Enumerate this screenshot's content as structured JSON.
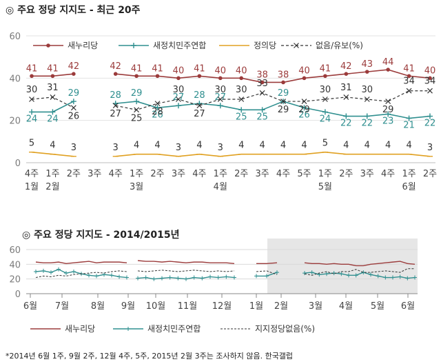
{
  "titles": {
    "top": "◎ 주요 정당 지지도 - 최근 20주",
    "bottom": "◎ 주요 정당 지지도 - 2014/2015년"
  },
  "footnote": "*2014년 6월 1주, 9월 2주, 12월 4주, 5주, 2015년 2월 3주는 조사하지 않음. 한국갤럽",
  "colors": {
    "saenuri": "#9b3b3b",
    "npad": "#2f8f8f",
    "justice": "#e0a020",
    "none": "#333333",
    "shade": "#e6e6e6"
  },
  "chart_data": [
    {
      "type": "line",
      "title": "주요 정당 지지도 - 최근 20주",
      "ylim": [
        0,
        60
      ],
      "yticks": [
        0,
        20,
        40,
        60
      ],
      "grid": true,
      "legend_position": "top",
      "x_week": [
        "4주",
        "1주",
        "2주",
        "3주",
        "4주",
        "1주",
        "2주",
        "3주",
        "4주",
        "1주",
        "2주",
        "3주",
        "4주",
        "5주",
        "1주",
        "2주",
        "3주",
        "4주",
        "1주",
        "2주"
      ],
      "x_month": [
        "1월",
        "2월",
        "",
        "",
        "",
        "3월",
        "",
        "",
        "",
        "4월",
        "",
        "",
        "",
        "",
        "5월",
        "",
        "",
        "",
        "6월",
        ""
      ],
      "series": [
        {
          "name": "새누리당",
          "color_key": "saenuri",
          "marker": "dot",
          "values": [
            41,
            41,
            42,
            null,
            42,
            41,
            41,
            40,
            41,
            40,
            40,
            38,
            38,
            40,
            41,
            42,
            43,
            44,
            41,
            40
          ]
        },
        {
          "name": "새정치민주연합",
          "color_key": "npad",
          "marker": "plus",
          "values": [
            24,
            24,
            29,
            null,
            28,
            29,
            26,
            27,
            28,
            27,
            25,
            25,
            29,
            26,
            24,
            22,
            22,
            23,
            21,
            22
          ]
        },
        {
          "name": "정의당",
          "color_key": "justice",
          "marker": "dash",
          "values": [
            5,
            4,
            3,
            null,
            3,
            4,
            4,
            3,
            4,
            3,
            4,
            4,
            4,
            4,
            5,
            4,
            4,
            4,
            4,
            3
          ]
        },
        {
          "name": "없음/유보(%)",
          "color_key": "none",
          "marker": "x",
          "dashed": true,
          "values": [
            30,
            31,
            26,
            null,
            27,
            25,
            28,
            30,
            27,
            30,
            30,
            33,
            29,
            29,
            30,
            31,
            30,
            29,
            34,
            34
          ]
        }
      ]
    },
    {
      "type": "line",
      "title": "주요 정당 지지도 - 2014/2015년",
      "ylim": [
        0,
        60
      ],
      "yticks": [
        0,
        20,
        40,
        60
      ],
      "grid": true,
      "legend_position": "bottom",
      "x_months": [
        "6월",
        "7월",
        "8월",
        "9월",
        "10월",
        "11월",
        "12월",
        "1월",
        "2월",
        "3월",
        "4월",
        "5월",
        "6월"
      ],
      "highlight_from_month": "1월",
      "series": [
        {
          "name": "새누리당",
          "color_key": "saenuri",
          "segments": [
            [
              43,
              42,
              42,
              43,
              41,
              42,
              43,
              44,
              42,
              43,
              43,
              43,
              42
            ],
            [
              45,
              44,
              44,
              43,
              44,
              43,
              42,
              43,
              43,
              42,
              42,
              42,
              41
            ],
            [
              41,
              41,
              42
            ],
            [
              42,
              41,
              41,
              40,
              41,
              40,
              40,
              38,
              38,
              40,
              41,
              42,
              43,
              44,
              41,
              40
            ]
          ]
        },
        {
          "name": "새정치민주연합",
          "color_key": "npad",
          "marker": "plus",
          "segments": [
            [
              30,
              31,
              29,
              33,
              28,
              30,
              27,
              25,
              24,
              26,
              25,
              23,
              22
            ],
            [
              21,
              22,
              20,
              21,
              22,
              21,
              20,
              22,
              21,
              23,
              22,
              23,
              22
            ],
            [
              24,
              24,
              29
            ],
            [
              28,
              29,
              26,
              27,
              28,
              27,
              25,
              25,
              29,
              26,
              24,
              22,
              22,
              23,
              21,
              22
            ]
          ]
        },
        {
          "name": "지지정당없음(%)",
          "color_key": "none",
          "dashed": true,
          "segments": [
            [
              22,
              24,
              23,
              25,
              24,
              26,
              27,
              28,
              29,
              28,
              30,
              31,
              30
            ],
            [
              31,
              30,
              31,
              32,
              31,
              30,
              31,
              32,
              31,
              30,
              31,
              30,
              31
            ],
            [
              30,
              31,
              26
            ],
            [
              27,
              25,
              28,
              30,
              27,
              30,
              30,
              33,
              29,
              29,
              30,
              31,
              30,
              29,
              34,
              34
            ]
          ]
        }
      ]
    }
  ]
}
